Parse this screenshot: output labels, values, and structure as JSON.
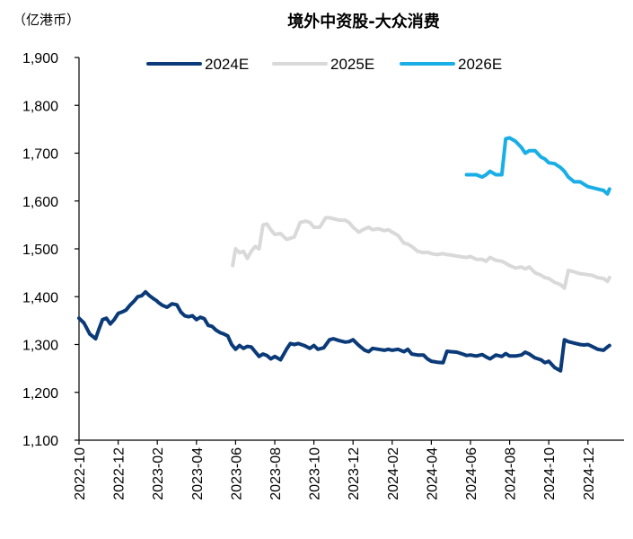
{
  "chart_data": {
    "type": "line",
    "title": "境外中资股-大众消费",
    "unit_label": "（亿港币）",
    "xlabel": "",
    "ylabel": "",
    "ylim": [
      1100,
      1900
    ],
    "yticks": [
      1100,
      1200,
      1300,
      1400,
      1500,
      1600,
      1700,
      1800,
      1900
    ],
    "ytick_labels": [
      "1,100",
      "1,200",
      "1,300",
      "1,400",
      "1,500",
      "1,600",
      "1,700",
      "1,800",
      "1,900"
    ],
    "xlim": [
      0,
      27.1
    ],
    "xticks": [
      0,
      2,
      4,
      6,
      8,
      10,
      12,
      14,
      16,
      18,
      20,
      22,
      24,
      26
    ],
    "xtick_labels": [
      "2022-10",
      "2022-12",
      "2023-02",
      "2023-04",
      "2023-06",
      "2023-08",
      "2023-10",
      "2023-12",
      "2024-02",
      "2024-04",
      "2024-06",
      "2024-08",
      "2024-10",
      "2024-12"
    ],
    "x_unit": "months since 2022-10",
    "legend_position": "top",
    "series": [
      {
        "name": "2024E",
        "color": "#0b3a78",
        "x": [
          0,
          0.25,
          0.55,
          0.85,
          1.0,
          1.2,
          1.4,
          1.6,
          1.8,
          2.0,
          2.2,
          2.4,
          2.6,
          2.8,
          3.0,
          3.2,
          3.4,
          3.6,
          3.8,
          3.95,
          4.05,
          4.25,
          4.5,
          4.75,
          5.0,
          5.2,
          5.4,
          5.6,
          5.8,
          6.0,
          6.2,
          6.4,
          6.6,
          6.8,
          7.0,
          7.2,
          7.4,
          7.6,
          7.8,
          8.0,
          8.2,
          8.4,
          8.6,
          8.8,
          9.0,
          9.2,
          9.4,
          9.6,
          9.8,
          10.0,
          10.3,
          10.6,
          10.8,
          11.0,
          11.2,
          11.5,
          11.8,
          12.0,
          12.2,
          12.5,
          12.8,
          13.0,
          13.3,
          13.6,
          13.8,
          14.0,
          14.3,
          14.6,
          14.8,
          15.0,
          15.3,
          15.6,
          15.8,
          16.0,
          16.3,
          16.6,
          16.8,
          17.0,
          17.3,
          17.6,
          17.8,
          18.0,
          18.3,
          18.6,
          18.8,
          19.0,
          19.3,
          19.6,
          19.8,
          20.0,
          20.3,
          20.6,
          20.8,
          21.0,
          21.3,
          21.6,
          21.8,
          22.0,
          22.3,
          22.6,
          22.8,
          23.0,
          23.3,
          23.6,
          23.8,
          24.0,
          24.3,
          24.6,
          24.8,
          25.0,
          25.3,
          25.6,
          25.8,
          26.0,
          26.2,
          26.5,
          26.8,
          27.0,
          27.1
        ],
        "values": [
          1355,
          1345,
          1322,
          1312,
          1330,
          1352,
          1355,
          1343,
          1352,
          1365,
          1368,
          1372,
          1382,
          1390,
          1400,
          1402,
          1410,
          1402,
          1396,
          1392,
          1388,
          1382,
          1378,
          1385,
          1383,
          1368,
          1360,
          1358,
          1360,
          1352,
          1357,
          1354,
          1340,
          1338,
          1330,
          1325,
          1322,
          1318,
          1300,
          1290,
          1298,
          1292,
          1296,
          1295,
          1285,
          1275,
          1280,
          1277,
          1270,
          1275,
          1268,
          1290,
          1302,
          1300,
          1302,
          1298,
          1292,
          1298,
          1290,
          1293,
          1310,
          1312,
          1308,
          1305,
          1306,
          1310,
          1298,
          1288,
          1285,
          1292,
          1290,
          1288,
          1290,
          1288,
          1290,
          1285,
          1290,
          1280,
          1278,
          1278,
          1270,
          1265,
          1263,
          1262,
          1286,
          1285,
          1284,
          1280,
          1277,
          1278,
          1276,
          1279,
          1274,
          1270,
          1278,
          1275,
          1281,
          1276,
          1276,
          1278,
          1284,
          1280,
          1272,
          1268,
          1262,
          1265,
          1252,
          1245,
          1310,
          1306,
          1303,
          1300,
          1299,
          1300,
          1296,
          1290,
          1288,
          1295,
          1298
        ]
      },
      {
        "name": "2025E",
        "color": "#d9d9d9",
        "x": [
          7.85,
          8.0,
          8.2,
          8.4,
          8.6,
          8.8,
          9.0,
          9.2,
          9.4,
          9.6,
          9.8,
          10.0,
          10.3,
          10.6,
          10.8,
          11.0,
          11.3,
          11.6,
          11.8,
          12.0,
          12.3,
          12.6,
          12.8,
          13.0,
          13.3,
          13.6,
          13.8,
          14.0,
          14.3,
          14.6,
          14.8,
          15.0,
          15.3,
          15.6,
          15.8,
          16.0,
          16.3,
          16.6,
          16.8,
          17.0,
          17.3,
          17.6,
          17.8,
          18.0,
          18.3,
          18.6,
          18.8,
          19.0,
          19.3,
          19.6,
          19.8,
          20.0,
          20.3,
          20.6,
          20.8,
          21.0,
          21.3,
          21.6,
          21.8,
          22.0,
          22.3,
          22.6,
          22.8,
          23.0,
          23.3,
          23.6,
          23.8,
          24.0,
          24.3,
          24.6,
          24.8,
          25.0,
          25.3,
          25.6,
          25.8,
          26.0,
          26.2,
          26.5,
          26.8,
          27.0,
          27.1
        ],
        "values": [
          1465,
          1500,
          1492,
          1495,
          1480,
          1495,
          1505,
          1500,
          1550,
          1552,
          1540,
          1530,
          1532,
          1520,
          1522,
          1525,
          1555,
          1558,
          1555,
          1545,
          1545,
          1565,
          1565,
          1563,
          1560,
          1560,
          1555,
          1545,
          1535,
          1542,
          1545,
          1540,
          1542,
          1538,
          1540,
          1535,
          1528,
          1512,
          1510,
          1505,
          1495,
          1492,
          1493,
          1490,
          1488,
          1490,
          1488,
          1487,
          1485,
          1483,
          1482,
          1484,
          1478,
          1478,
          1474,
          1482,
          1476,
          1474,
          1470,
          1465,
          1460,
          1462,
          1458,
          1462,
          1450,
          1445,
          1440,
          1438,
          1430,
          1425,
          1418,
          1455,
          1452,
          1448,
          1447,
          1446,
          1445,
          1440,
          1438,
          1432,
          1440
        ]
      },
      {
        "name": "2026E",
        "color": "#1aaee6",
        "x": [
          19.8,
          20.0,
          20.3,
          20.6,
          20.8,
          21.0,
          21.3,
          21.6,
          21.8,
          22.0,
          22.3,
          22.6,
          22.8,
          23.0,
          23.3,
          23.6,
          23.8,
          24.0,
          24.3,
          24.6,
          24.8,
          25.0,
          25.3,
          25.6,
          25.8,
          26.0,
          26.2,
          26.5,
          26.8,
          27.0,
          27.1
        ],
        "values": [
          1655,
          1655,
          1655,
          1650,
          1655,
          1662,
          1655,
          1655,
          1730,
          1732,
          1725,
          1712,
          1700,
          1705,
          1705,
          1692,
          1688,
          1680,
          1678,
          1670,
          1662,
          1650,
          1640,
          1640,
          1635,
          1630,
          1628,
          1625,
          1622,
          1615,
          1625
        ]
      }
    ]
  }
}
